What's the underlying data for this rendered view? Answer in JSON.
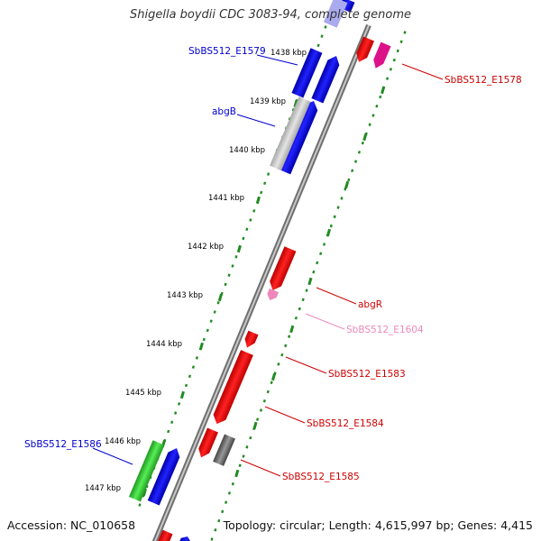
{
  "title": "Shigella boydii CDC 3083-94, complete genome",
  "footer": {
    "accession": "Accession: NC_010658",
    "summary": "Topology: circular; Length: 4,615,997 bp; Genes: 4,415"
  },
  "ticks": [
    "1438 kbp",
    "1439 kbp",
    "1440 kbp",
    "1441 kbp",
    "1442 kbp",
    "1443 kbp",
    "1444 kbp",
    "1445 kbp",
    "1446 kbp",
    "1447 kbp"
  ],
  "gene_labels": [
    {
      "text": "SbBS512_E1579",
      "color": "#0000cc"
    },
    {
      "text": "abgB",
      "color": "#0000cc"
    },
    {
      "text": "SbBS512_E1586",
      "color": "#0000cc"
    },
    {
      "text": "SbBS512_E1578",
      "color": "#cc0000"
    },
    {
      "text": "abgR",
      "color": "#cc0000"
    },
    {
      "text": "SbBS512_E1604",
      "color": "#ee88bb"
    },
    {
      "text": "SbBS512_E1583",
      "color": "#cc0000"
    },
    {
      "text": "SbBS512_E1584",
      "color": "#cc0000"
    },
    {
      "text": "SbBS512_E1585",
      "color": "#cc0000"
    }
  ],
  "colors": {
    "backbone": "#888888",
    "forward_gene": "#0000ee",
    "reverse_gene": "#ee0000",
    "grey_gene": "#c4c4c4",
    "green_gene": "#33cc33",
    "pink_gene": "#ee88bb",
    "magenta_gene": "#dd1188",
    "dark_grey_gene": "#666666",
    "dotted_ring": "#228b22"
  }
}
